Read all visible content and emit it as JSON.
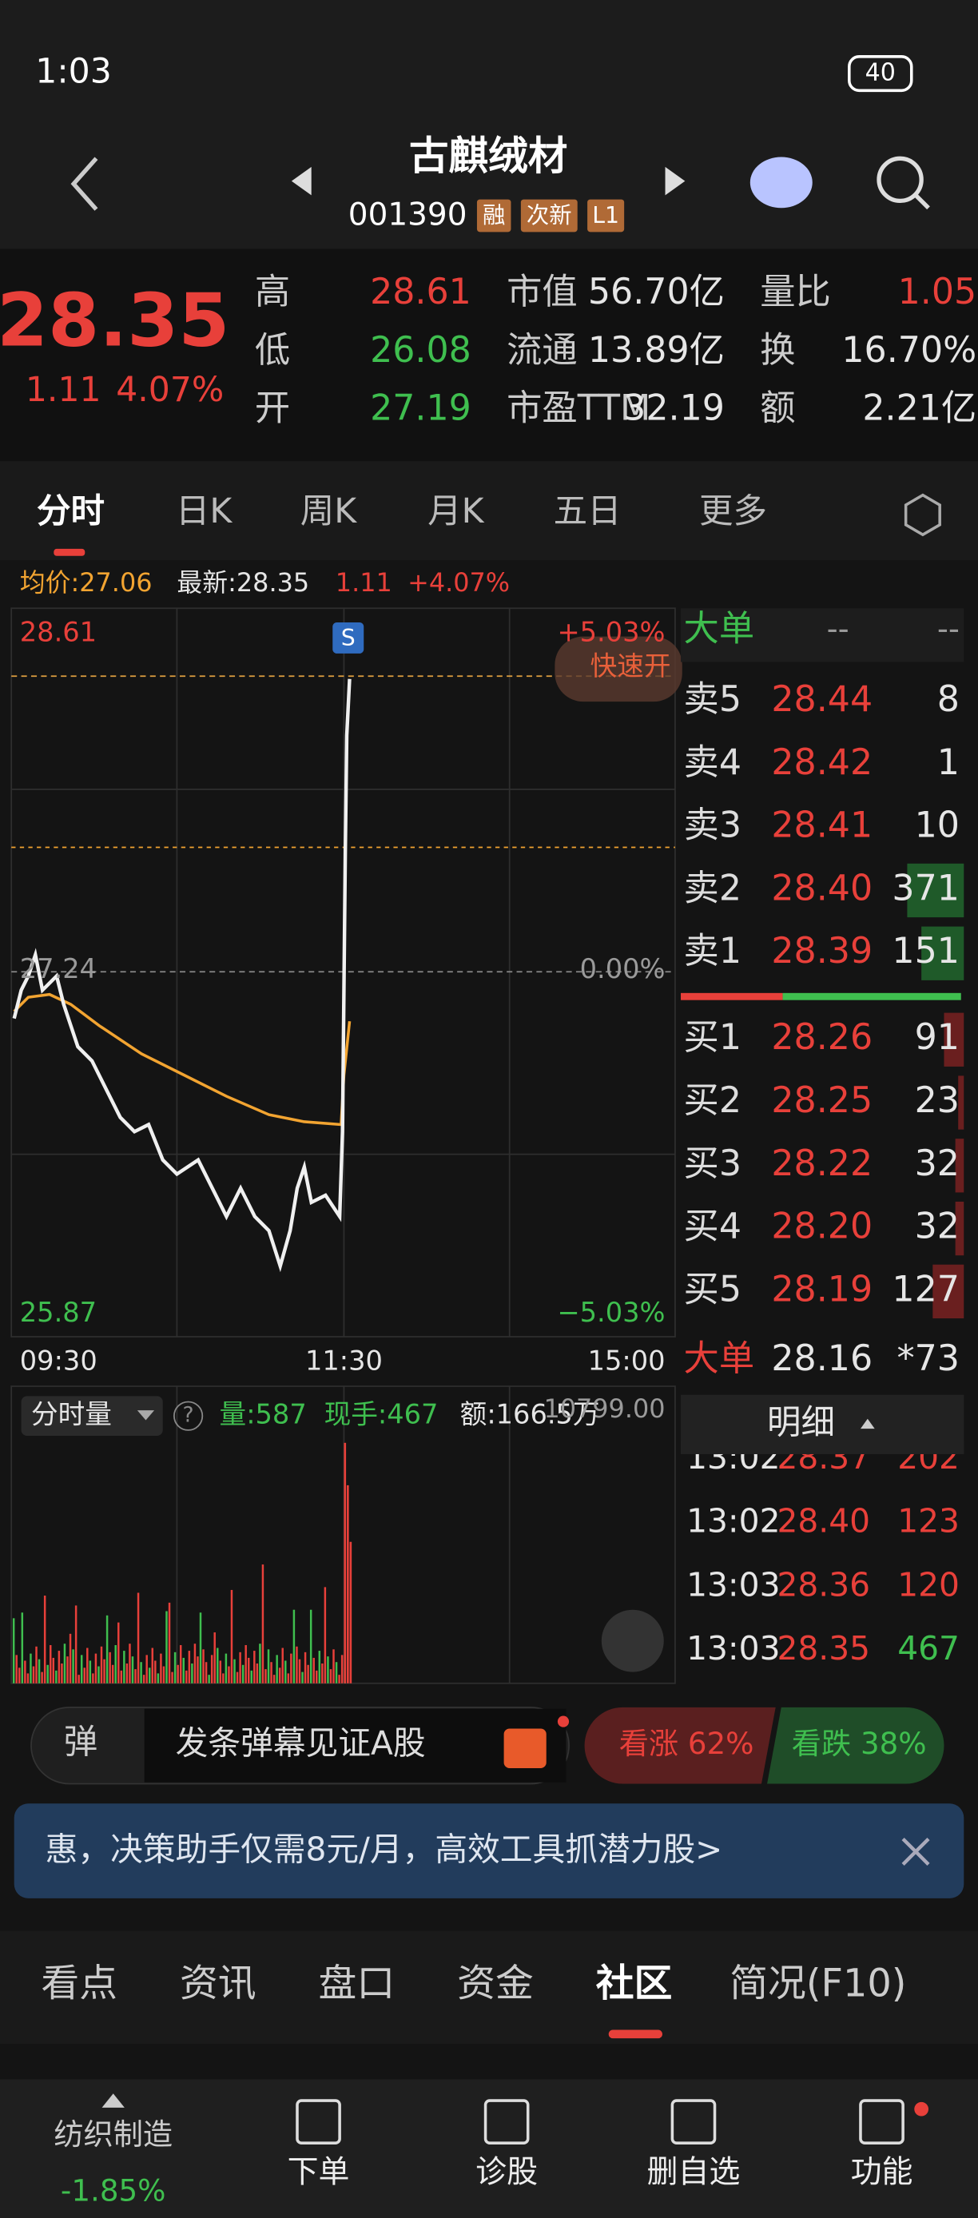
{
  "status_bar": {
    "time": "1:03",
    "battery": "40"
  },
  "header": {
    "title": "古麒绒材",
    "code": "001390",
    "tags": [
      "融",
      "次新",
      "L1"
    ]
  },
  "quote": {
    "price": "28.35",
    "change": "1.11",
    "change_pct": "4.07%",
    "stats": [
      {
        "label": "高",
        "value": "28.61"
      },
      {
        "label": "低",
        "value": "26.08"
      },
      {
        "label": "开",
        "value": "27.19"
      },
      {
        "label": "市值",
        "value": "56.70亿"
      },
      {
        "label": "流通",
        "value": "13.89亿"
      },
      {
        "label": "市盈TTM",
        "value": "32.19"
      },
      {
        "label": "量比",
        "value": "1.05"
      },
      {
        "label": "换",
        "value": "16.70%"
      },
      {
        "label": "额",
        "value": "2.21亿"
      }
    ]
  },
  "chart_tabs": [
    "分时",
    "日K",
    "周K",
    "月K",
    "五日",
    "更多"
  ],
  "intraday": {
    "avg": "均价:27.06",
    "latest": "最新:28.35",
    "change": "1.11",
    "change_pct": "+4.07%",
    "high": "28.61",
    "high_pct": "+5.03%",
    "base": "27.24",
    "base_pct": "0.00%",
    "low": "25.87",
    "low_pct": "−5.03%",
    "times": [
      "09:30",
      "11:30",
      "15:00"
    ],
    "signal": "S",
    "quick_button": "快速开"
  },
  "volume": {
    "selector": "分时量",
    "help": "?",
    "volume": "量:587",
    "current": "现手:467",
    "amount": "额:166.5万",
    "max": "10799.00"
  },
  "order_book": {
    "big_order_title": "大单",
    "big_order_values": [
      "--",
      "--"
    ],
    "asks": [
      [
        "卖5",
        "28.44",
        "8"
      ],
      [
        "卖4",
        "28.42",
        "1"
      ],
      [
        "卖3",
        "28.41",
        "10"
      ],
      [
        "卖2",
        "28.40",
        "371"
      ],
      [
        "卖1",
        "28.39",
        "151"
      ]
    ],
    "bids": [
      [
        "买1",
        "28.26",
        "91"
      ],
      [
        "买2",
        "28.25",
        "23"
      ],
      [
        "买3",
        "28.22",
        "32"
      ],
      [
        "买4",
        "28.20",
        "32"
      ],
      [
        "买5",
        "28.19",
        "127"
      ]
    ],
    "big_order": {
      "label": "大单",
      "price": "28.16",
      "volume": "*73"
    },
    "detail_title": "明细",
    "trades": [
      [
        "13:02",
        "28.37",
        "202"
      ],
      [
        "13:02",
        "28.40",
        "123"
      ],
      [
        "13:03",
        "28.36",
        "120"
      ],
      [
        "13:03",
        "28.35",
        "467"
      ]
    ]
  },
  "danmu": {
    "icon": "弹",
    "placeholder": "发条弹幕见证A股",
    "bull": "看涨 62%",
    "bear": "看跌 38%"
  },
  "banner": {
    "text": "惠，决策助手仅需8元/月，高效工具抓潜力股>"
  },
  "bottom_tabs": [
    "看点",
    "资讯",
    "盘口",
    "资金",
    "社区",
    "简况(F10)"
  ],
  "nav": {
    "sector": "纺织制造",
    "sector_change": "-1.85%",
    "items": [
      "下单",
      "诊股",
      "删自选",
      "功能"
    ]
  }
}
